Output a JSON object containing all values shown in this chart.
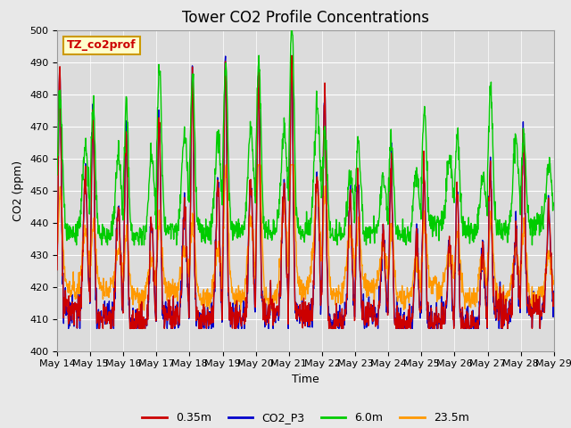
{
  "title": "Tower CO2 Profile Concentrations",
  "xlabel": "Time",
  "ylabel": "CO2 (ppm)",
  "ylim": [
    400,
    500
  ],
  "yticks": [
    400,
    410,
    420,
    430,
    440,
    450,
    460,
    470,
    480,
    490,
    500
  ],
  "n_days": 15,
  "points_per_day": 96,
  "series": {
    "0.35m": {
      "color": "#cc0000",
      "lw": 1.0
    },
    "CO2_P3": {
      "color": "#0000cc",
      "lw": 1.0
    },
    "6.0m": {
      "color": "#00cc00",
      "lw": 1.0
    },
    "23.5m": {
      "color": "#ff9900",
      "lw": 1.0
    }
  },
  "fig_bg_color": "#e8e8e8",
  "plot_bg_color": "#dcdcdc",
  "annotation_text": "TZ_co2prof",
  "annotation_box_color": "#ffffcc",
  "annotation_border_color": "#cc9900",
  "title_fontsize": 12,
  "axis_label_fontsize": 9,
  "tick_fontsize": 8,
  "legend_fontsize": 9,
  "day_start": 14,
  "grid_color": "#ffffff",
  "spine_color": "#999999"
}
